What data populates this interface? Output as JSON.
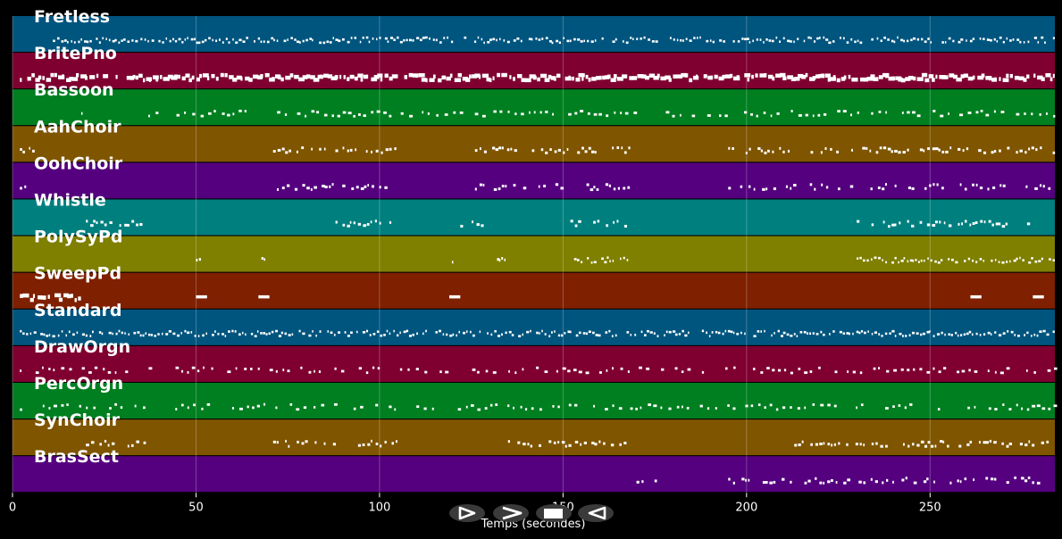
{
  "chart_data": {
    "type": "piano-roll",
    "title": "",
    "xlabel": "Temps (secondes)",
    "ylabel": "",
    "xlim": [
      0,
      284
    ],
    "xticks": [
      0,
      50,
      100,
      150,
      200,
      250
    ],
    "grid": true,
    "tracks": [
      {
        "name": "Fretless",
        "color": "#00557f",
        "segments": [
          [
            11,
            120,
            "dense"
          ],
          [
            123,
            284,
            "dense"
          ]
        ]
      },
      {
        "name": "BritePno",
        "color": "#7f0030",
        "segments": [
          [
            2,
            284,
            "heavy"
          ]
        ]
      },
      {
        "name": "Bassoon",
        "color": "#007f20",
        "segments": [
          [
            17,
            19,
            "sparse"
          ],
          [
            37,
            170,
            "medium"
          ],
          [
            178,
            284,
            "medium"
          ]
        ]
      },
      {
        "name": "AahChoir",
        "color": "#7f5500",
        "segments": [
          [
            2,
            6,
            "sparse"
          ],
          [
            71,
            104,
            "phrase"
          ],
          [
            126,
            168,
            "phrase"
          ],
          [
            195,
            284,
            "phrase"
          ]
        ]
      },
      {
        "name": "OohChoir",
        "color": "#55007f",
        "segments": [
          [
            2,
            5,
            "sparse"
          ],
          [
            71,
            104,
            "phrase"
          ],
          [
            126,
            168,
            "phrase"
          ],
          [
            195,
            284,
            "phrase"
          ]
        ]
      },
      {
        "name": "Whistle",
        "color": "#007f7f",
        "segments": [
          [
            20,
            35,
            "phrase"
          ],
          [
            88,
            103,
            "phrase"
          ],
          [
            122,
            129,
            "phrase"
          ],
          [
            152,
            167,
            "phrase"
          ],
          [
            230,
            278,
            "phrase"
          ]
        ]
      },
      {
        "name": "PolySyPd",
        "color": "#7f7f00",
        "segments": [
          [
            7,
            9,
            "sparse"
          ],
          [
            50,
            52,
            "sparse"
          ],
          [
            67,
            69,
            "sparse"
          ],
          [
            119,
            120,
            "sparse"
          ],
          [
            132,
            135,
            "sparse"
          ],
          [
            153,
            168,
            "dense"
          ],
          [
            230,
            284,
            "dense"
          ]
        ]
      },
      {
        "name": "SweepPd",
        "color": "#7f2000",
        "segments": [
          [
            2,
            18,
            "heavy"
          ],
          [
            50,
            53,
            "long"
          ],
          [
            67,
            70,
            "long"
          ],
          [
            119,
            122,
            "long"
          ],
          [
            261,
            264,
            "long"
          ],
          [
            278,
            281,
            "long"
          ]
        ]
      },
      {
        "name": "Standard",
        "color": "#00557f",
        "segments": [
          [
            2,
            284,
            "dense"
          ]
        ]
      },
      {
        "name": "DrawOrgn",
        "color": "#7f0030",
        "segments": [
          [
            2,
            120,
            "medium"
          ],
          [
            123,
            284,
            "medium"
          ]
        ]
      },
      {
        "name": "PercOrgn",
        "color": "#007f20",
        "segments": [
          [
            2,
            284,
            "medium"
          ]
        ]
      },
      {
        "name": "SynChoir",
        "color": "#7f5500",
        "segments": [
          [
            20,
            36,
            "phrase"
          ],
          [
            71,
            105,
            "phrase"
          ],
          [
            135,
            169,
            "phrase"
          ],
          [
            213,
            282,
            "phrase"
          ]
        ]
      },
      {
        "name": "BrasSect",
        "color": "#55007f",
        "segments": [
          [
            170,
            178,
            "phrase"
          ],
          [
            195,
            284,
            "phrase"
          ]
        ]
      }
    ]
  },
  "transport": {
    "play_icon": "play-outline-icon",
    "forward_icon": "fast-forward-chevron-icon",
    "stop_icon": "stop-square-icon",
    "rewind_icon": "rewind-outline-icon"
  }
}
